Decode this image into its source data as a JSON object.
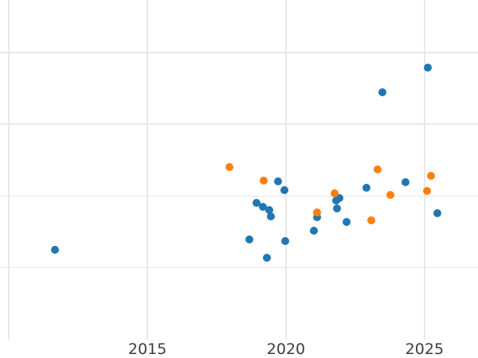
{
  "chart_data": {
    "type": "scatter",
    "title": "",
    "xlabel": "",
    "ylabel": "",
    "legend_visible": false,
    "grid": true,
    "colors": {
      "series_blue": "#1f77b4",
      "series_orange": "#ff7f0e",
      "gridline": "#e8e8e8",
      "tick_label": "#3d3d3d",
      "background": "#ffffff"
    },
    "x_axis": {
      "range": [
        2009.68,
        2026.93
      ],
      "tick_values": [
        2015,
        2020,
        2025
      ],
      "tick_labels": [
        "2015",
        "2020",
        "2025"
      ],
      "gridline_values": [
        2010,
        2015,
        2020,
        2025
      ]
    },
    "y_axis": {
      "range": [
        0,
        4.729
      ],
      "tick_labels": [],
      "gridline_values": [
        1,
        2,
        3,
        4
      ],
      "note": "no y tick labels visible in image; y expressed in gridline-spacing units measured from plot bottom"
    },
    "series": [
      {
        "name": "blue",
        "color_key": "series_blue",
        "points": [
          [
            2011.67,
            1.25
          ],
          [
            2018.69,
            1.4
          ],
          [
            2018.95,
            1.9
          ],
          [
            2019.18,
            1.85
          ],
          [
            2019.31,
            1.14
          ],
          [
            2019.41,
            1.8
          ],
          [
            2019.45,
            1.72
          ],
          [
            2019.7,
            2.2
          ],
          [
            2019.93,
            2.08
          ],
          [
            2019.96,
            1.37
          ],
          [
            2021.01,
            1.52
          ],
          [
            2021.12,
            1.71
          ],
          [
            2021.8,
            1.94
          ],
          [
            2021.85,
            1.83
          ],
          [
            2021.92,
            1.97
          ],
          [
            2022.2,
            1.64
          ],
          [
            2022.9,
            2.12
          ],
          [
            2023.48,
            3.44
          ],
          [
            2024.3,
            2.19
          ],
          [
            2025.13,
            3.79
          ],
          [
            2025.47,
            1.76
          ]
        ]
      },
      {
        "name": "orange",
        "color_key": "series_orange",
        "points": [
          [
            2017.97,
            2.4
          ],
          [
            2019.21,
            2.21
          ],
          [
            2021.11,
            1.77
          ],
          [
            2021.75,
            2.04
          ],
          [
            2023.09,
            1.66
          ],
          [
            2023.3,
            2.37
          ],
          [
            2023.76,
            2.02
          ],
          [
            2025.1,
            2.07
          ],
          [
            2025.22,
            2.28
          ]
        ]
      }
    ]
  }
}
